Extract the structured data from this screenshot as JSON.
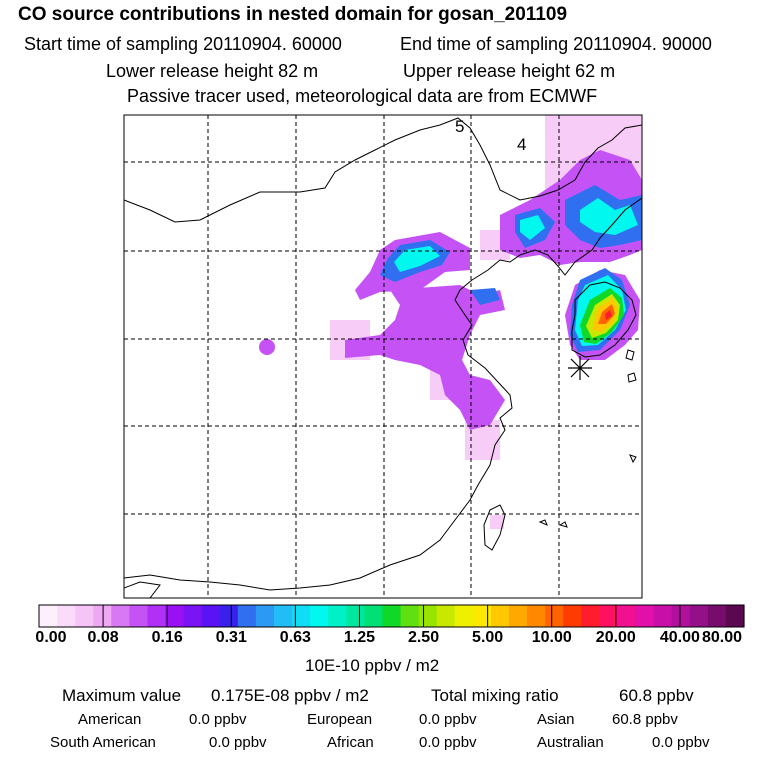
{
  "title": "CO  source contributions in nested domain for gosan_201109",
  "sampling": {
    "start": "Start time of sampling 20110904. 60000",
    "end": "End time of sampling 20110904. 90000"
  },
  "release": {
    "lower": "Lower release height   82 m",
    "upper": "Upper release height   62 m"
  },
  "note": "Passive tracer used, meteorological data are from ECMWF",
  "map": {
    "labels": {
      "day5": "5",
      "day4": "4"
    },
    "receptor_marker": "asterisk-icon"
  },
  "colorbar": {
    "ticks": [
      "0.00",
      "0.08",
      "0.16",
      "0.31",
      "0.63",
      "1.25",
      "2.50",
      "5.00",
      "10.00",
      "20.00",
      "40.00",
      "80.00"
    ],
    "colors": [
      "#fdf0fd",
      "#fadcfa",
      "#f6c4f6",
      "#f0a8f4",
      "#d978f4",
      "#c552f4",
      "#b030f4",
      "#9a10f4",
      "#7b14f4",
      "#5a14f4",
      "#3a20ec",
      "#3070f0",
      "#2c9af4",
      "#22bcf6",
      "#10dcf6",
      "#00f8ee",
      "#00f0c8",
      "#00e8a0",
      "#00e074",
      "#10d828",
      "#60e010",
      "#98e400",
      "#c8e800",
      "#eef000",
      "#ffe800",
      "#ffc800",
      "#ffa800",
      "#ff8800",
      "#ff6400",
      "#ff3c00",
      "#ff1c2c",
      "#ff1062",
      "#f01090",
      "#e010a8",
      "#c810a8",
      "#b0109c",
      "#941088",
      "#780c6c",
      "#5a0850"
    ],
    "units": "10E-10 ppbv / m2"
  },
  "summary": {
    "max_label": "Maximum value",
    "max_value": "0.175E-08 ppbv / m2",
    "total_label": "Total mixing ratio",
    "total_value": "60.8 ppbv",
    "american_label": "American",
    "american_value": "0.0 ppbv",
    "european_label": "European",
    "european_value": "0.0 ppbv",
    "asian_label": "Asian",
    "asian_value": "60.8 ppbv",
    "south_american_label": "South American",
    "south_american_value": "0.0 ppbv",
    "african_label": "African",
    "african_value": "0.0 ppbv",
    "australian_label": "Australian",
    "australian_value": "0.0 ppbv"
  }
}
